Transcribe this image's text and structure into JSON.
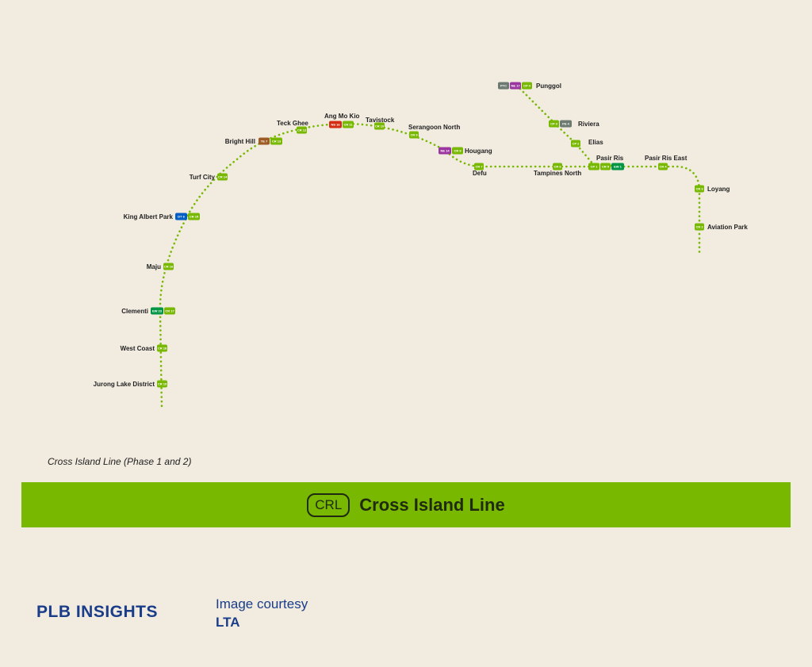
{
  "map": {
    "line_color": "#78b800",
    "stations": [
      {
        "name": "Punggol",
        "codes": [
          {
            "code": "PTC",
            "color": "#6d7a72"
          },
          {
            "code": "NE 17",
            "color": "#9b36a0"
          },
          {
            "code": "CP 4",
            "color": "#78b800"
          }
        ]
      },
      {
        "name": "Riviera",
        "codes": [
          {
            "code": "CP 3",
            "color": "#78b800"
          },
          {
            "code": "PE 4",
            "color": "#6d7a72"
          }
        ]
      },
      {
        "name": "Elias",
        "codes": [
          {
            "code": "CP 2",
            "color": "#78b800"
          }
        ]
      },
      {
        "name": "Pasir Ris",
        "codes": [
          {
            "code": "CP 1",
            "color": "#78b800"
          },
          {
            "code": "CR 5",
            "color": "#78b800"
          },
          {
            "code": "EW 1",
            "color": "#009645"
          }
        ]
      },
      {
        "name": "Pasir Ris East",
        "codes": [
          {
            "code": "CR 4",
            "color": "#78b800"
          }
        ]
      },
      {
        "name": "Loyang",
        "codes": [
          {
            "code": "CR 3",
            "color": "#78b800"
          }
        ]
      },
      {
        "name": "Aviation Park",
        "codes": [
          {
            "code": "CR 2",
            "color": "#78b800"
          }
        ]
      },
      {
        "name": "Tampines North",
        "codes": [
          {
            "code": "CR 6",
            "color": "#78b800"
          }
        ]
      },
      {
        "name": "Defu",
        "codes": [
          {
            "code": "CR 7",
            "color": "#78b800"
          }
        ]
      },
      {
        "name": "Hougang",
        "codes": [
          {
            "code": "NE 14",
            "color": "#9b36a0"
          },
          {
            "code": "CR 8",
            "color": "#78b800"
          }
        ]
      },
      {
        "name": "Serangoon North",
        "codes": [
          {
            "code": "CR 9",
            "color": "#78b800"
          }
        ]
      },
      {
        "name": "Tavistock",
        "codes": [
          {
            "code": "CR 10",
            "color": "#78b800"
          }
        ]
      },
      {
        "name": "Ang Mo Kio",
        "codes": [
          {
            "code": "NS 16",
            "color": "#d42e12"
          },
          {
            "code": "CR 11",
            "color": "#78b800"
          }
        ]
      },
      {
        "name": "Teck Ghee",
        "codes": [
          {
            "code": "CR 12",
            "color": "#78b800"
          }
        ]
      },
      {
        "name": "Bright Hill",
        "codes": [
          {
            "code": "TE 7",
            "color": "#9d5b25"
          },
          {
            "code": "CR 13",
            "color": "#78b800"
          }
        ]
      },
      {
        "name": "Turf City",
        "codes": [
          {
            "code": "CR 14",
            "color": "#78b800"
          }
        ]
      },
      {
        "name": "King Albert Park",
        "codes": [
          {
            "code": "DT 6",
            "color": "#005ec4"
          },
          {
            "code": "CR 15",
            "color": "#78b800"
          }
        ]
      },
      {
        "name": "Maju",
        "codes": [
          {
            "code": "CR 16",
            "color": "#78b800"
          }
        ]
      },
      {
        "name": "Clementi",
        "codes": [
          {
            "code": "EW 23",
            "color": "#009645"
          },
          {
            "code": "CR 17",
            "color": "#78b800"
          }
        ]
      },
      {
        "name": "West Coast",
        "codes": [
          {
            "code": "CR 18",
            "color": "#78b800"
          }
        ]
      },
      {
        "name": "Jurong Lake District",
        "codes": [
          {
            "code": "CR 19",
            "color": "#78b800"
          }
        ]
      }
    ]
  },
  "caption": "Cross Island Line (Phase 1 and 2)",
  "banner": {
    "badge": "CRL",
    "title": "Cross Island Line",
    "color": "#78b800"
  },
  "footer": {
    "logo": "PLB INSIGHTS",
    "courtesy_line1": "Image courtesy",
    "courtesy_line2": "LTA"
  }
}
